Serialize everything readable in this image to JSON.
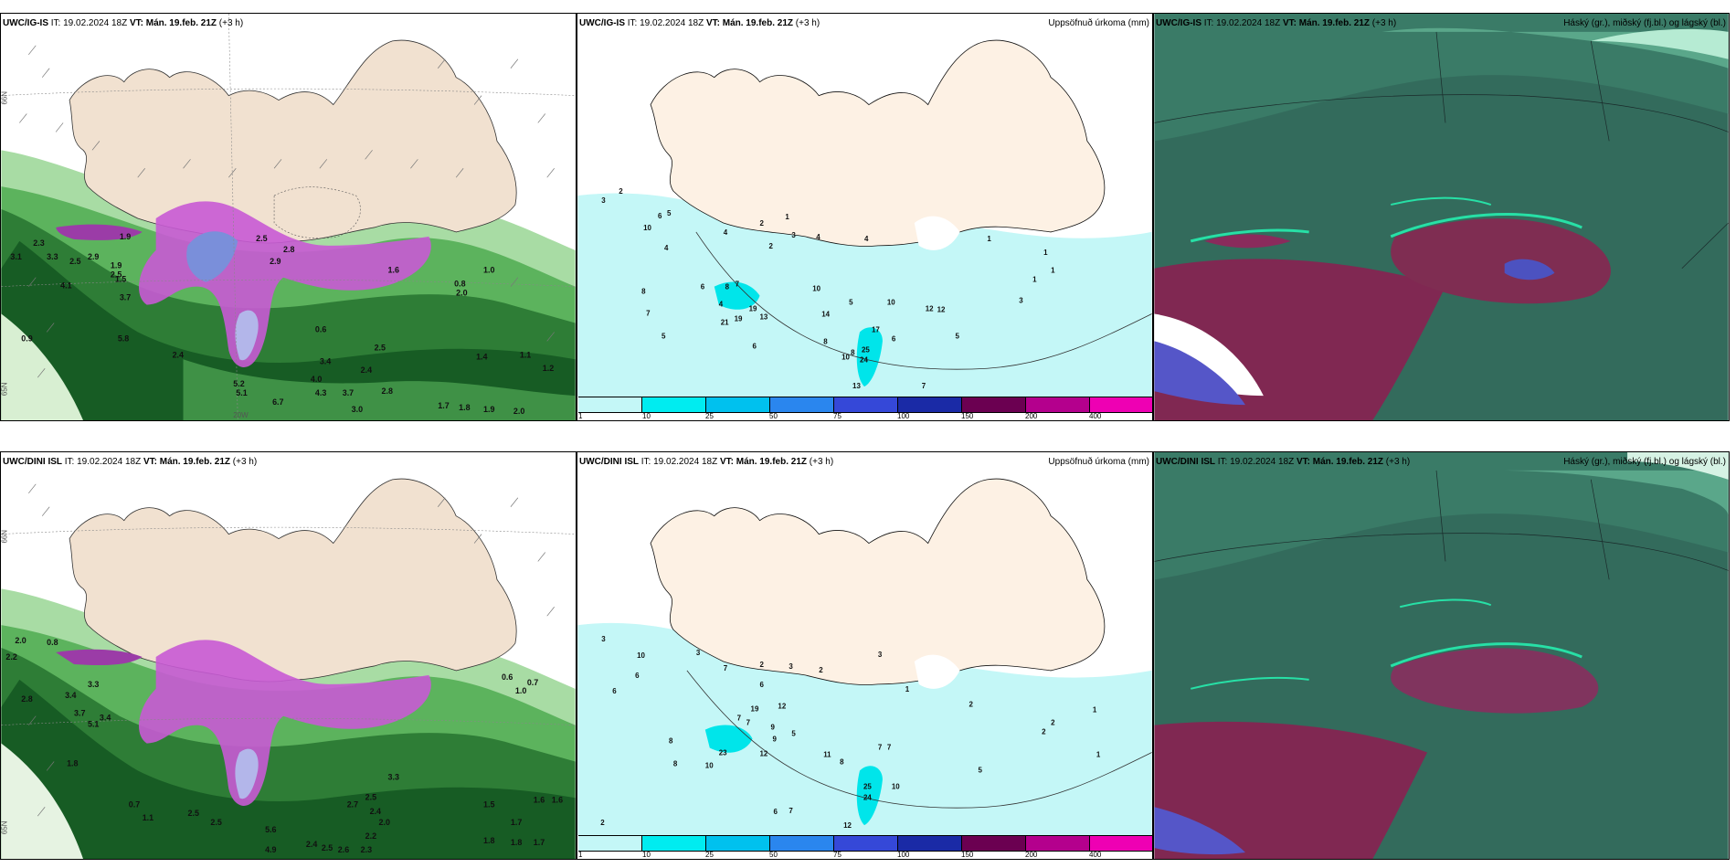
{
  "top_row": {
    "left": {
      "model": "UWC/IG-IS",
      "it_label": "IT:",
      "it_value": "19.02.2024 18Z",
      "vt_label": "VT:",
      "vt_value": "Mán. 19.feb. 21Z",
      "lead": "(+3 h)",
      "right_title": "",
      "lat_labels": [
        "66N",
        "65N"
      ],
      "lon_labels": [
        "20W"
      ],
      "lat_left_labels": [
        "65N"
      ]
    },
    "middle": {
      "model": "UWC/IG-IS",
      "it_label": "IT:",
      "it_value": "19.02.2024 18Z",
      "vt_label": "VT:",
      "vt_value": "Mán. 19.feb. 21Z",
      "lead": "(+3 h)",
      "right_title": "Uppsöfnuð úrkoma (mm)",
      "values": [
        "3",
        "2",
        "6",
        "5",
        "10",
        "4",
        "4",
        "2",
        "3",
        "1",
        "4",
        "2",
        "8",
        "6",
        "7",
        "8",
        "4",
        "7",
        "5",
        "19",
        "21",
        "19",
        "13",
        "10",
        "14",
        "5",
        "10",
        "12",
        "6",
        "17",
        "8",
        "8",
        "25",
        "6",
        "10",
        "24",
        "13",
        "3",
        "7",
        "12",
        "5",
        "4",
        "1",
        "1",
        "1",
        "1"
      ]
    },
    "right": {
      "model": "UWC/IG-IS",
      "it_label": "IT:",
      "it_value": "19.02.2024 18Z",
      "vt_label": "VT:",
      "vt_value": "Mán. 19.feb. 21Z",
      "lead": "(+3 h)",
      "right_title": "Háský (gr.), miðský (fj.bl.) og lágský (bl.)"
    }
  },
  "bottom_row": {
    "left": {
      "model": "UWC/DINI ISL",
      "it_label": "IT:",
      "it_value": "19.02.2024 18Z",
      "vt_label": "VT:",
      "vt_value": "Mán. 19.feb. 21Z",
      "lead": "(+3 h)",
      "right_title": "",
      "lat_labels": [
        "66N",
        "65N"
      ],
      "lat_left_labels": [
        "65N"
      ]
    },
    "middle": {
      "model": "UWC/DINI ISL",
      "it_label": "IT:",
      "it_value": "19.02.2024 18Z",
      "vt_label": "VT:",
      "vt_value": "Mán. 19.feb. 21Z",
      "lead": "(+3 h)",
      "right_title": "Uppsöfnuð úrkoma (mm)",
      "values": [
        "3",
        "10",
        "3",
        "6",
        "7",
        "2",
        "3",
        "2",
        "6",
        "6",
        "7",
        "7",
        "9",
        "8",
        "8",
        "19",
        "12",
        "9",
        "5",
        "10",
        "23",
        "12",
        "11",
        "8",
        "7",
        "7",
        "3",
        "1",
        "2",
        "2",
        "2",
        "5",
        "25",
        "10",
        "6",
        "24",
        "12",
        "7",
        "2",
        "1",
        "1"
      ]
    },
    "right": {
      "model": "UWC/DINI ISL",
      "it_label": "IT:",
      "it_value": "19.02.2024 18Z",
      "vt_label": "VT:",
      "vt_value": "Mán. 19.feb. 21Z",
      "lead": "(+3 h)",
      "right_title": "Háský (gr.), miðský (fj.bl.) og lágský (bl.)"
    }
  },
  "colorbar": {
    "labels": [
      "1",
      "10",
      "25",
      "50",
      "75",
      "100",
      "150",
      "200",
      "400"
    ],
    "colors": [
      "#c4f7f7",
      "#00ecf0",
      "#00c1ee",
      "#2a86ee",
      "#3548d8",
      "#1a2aa6",
      "#6b0051",
      "#b4008d",
      "#ee00b3",
      "#f7b9f2"
    ]
  },
  "wind_values_top": [
    "1.9",
    "2.3",
    "3.1",
    "3.3",
    "2.5",
    "2.9",
    "1.9",
    "1.5",
    "4.1",
    "3.7",
    "2.5",
    "5.8",
    "0.9",
    "2.4",
    "2.5",
    "2.9",
    "2.8",
    "1.6",
    "2.0",
    "1.0",
    "0.8",
    "0.6",
    "3.4",
    "4.0",
    "4.3",
    "5.2",
    "5.1",
    "6.7",
    "3.0",
    "3.7",
    "2.8",
    "1.7",
    "1.8",
    "1.9",
    "2.0",
    "1.1",
    "1.2",
    "1.4",
    "2.4",
    "2.5"
  ],
  "wind_values_bottom": [
    "2.0",
    "0.8",
    "2.2",
    "2.8",
    "3.4",
    "3.3",
    "3.7",
    "5.1",
    "3.4",
    "1.8",
    "0.7",
    "1.1",
    "2.5",
    "2.5",
    "5.6",
    "4.9",
    "2.4",
    "2.5",
    "2.6",
    "2.3",
    "2.2",
    "2.0",
    "2.4",
    "2.7",
    "2.5",
    "3.3",
    "1.5",
    "1.8",
    "1.7",
    "1.6",
    "1.8",
    "1.7",
    "1.6",
    "0.6",
    "1.0",
    "0.7"
  ]
}
